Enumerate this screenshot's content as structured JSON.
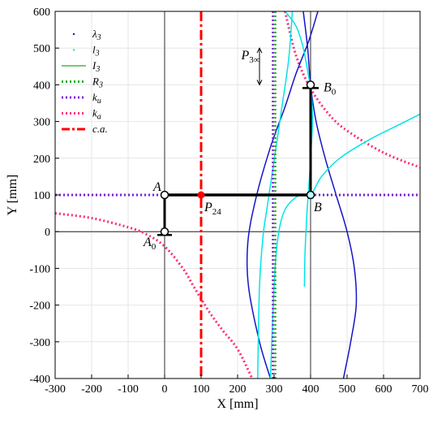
{
  "chart_data": {
    "type": "line",
    "xlabel": "X [mm]",
    "ylabel": "Y [mm]",
    "xlim": [
      -300,
      700
    ],
    "ylim": [
      -400,
      600
    ],
    "grid": true,
    "legend_placement": "top-left",
    "x_ticks": [
      -300,
      -200,
      -100,
      0,
      100,
      200,
      300,
      400,
      500,
      600,
      700
    ],
    "y_ticks": [
      -400,
      -300,
      -200,
      -100,
      0,
      100,
      200,
      300,
      400,
      500,
      600
    ],
    "x_tick_labels": [
      "-300",
      "-200",
      "-100",
      "0",
      "100",
      "200",
      "300",
      "400",
      "500",
      "600",
      "700"
    ],
    "y_tick_labels": [
      "-400",
      "-300",
      "-200",
      "-100",
      "0",
      "100",
      "200",
      "300",
      "400",
      "500",
      "600"
    ],
    "legend": [
      {
        "label": "λ3",
        "color": "#1414c8",
        "style": "dot"
      },
      {
        "label": "l3",
        "color": "#00e5e5",
        "style": "dot"
      },
      {
        "label": "I3",
        "color": "#22aa22",
        "style": "solid"
      },
      {
        "label": "R3",
        "color": "#22aa22",
        "style": "dotted-thick"
      },
      {
        "label": "ku",
        "color": "#7a1fe0",
        "style": "dotted-thick"
      },
      {
        "label": "ka",
        "color": "#ff2a7a",
        "style": "dotted-thick"
      },
      {
        "label": "c.a.",
        "color": "#ff0000",
        "style": "dashdot"
      }
    ],
    "points": [
      {
        "name": "A",
        "x": 0,
        "y": 100
      },
      {
        "name": "A0",
        "x": 0,
        "y": 0
      },
      {
        "name": "B",
        "x": 400,
        "y": 100
      },
      {
        "name": "B0",
        "x": 400,
        "y": 400
      },
      {
        "name": "P24",
        "x": 100,
        "y": 100
      }
    ],
    "annotation": "P3∞",
    "series": [
      {
        "name": "ku",
        "x": [
          -300,
          700
        ],
        "y": [
          100,
          100
        ]
      },
      {
        "name": "c.a.",
        "x": [
          100,
          100
        ],
        "y": [
          -400,
          600
        ]
      },
      {
        "name": "R3",
        "x": [
          300,
          300
        ],
        "y": [
          -400,
          600
        ]
      },
      {
        "name": "ka",
        "x": [
          -300,
          -200,
          -100,
          -50,
          0,
          50,
          80,
          120,
          160,
          200,
          240
        ],
        "y": [
          50,
          37,
          12,
          -7,
          -40,
          -100,
          -150,
          -215,
          -270,
          -320,
          -400
        ]
      },
      {
        "name": "ka",
        "x": [
          330,
          360,
          400,
          450,
          500,
          600,
          700
        ],
        "y": [
          600,
          480,
          390,
          320,
          275,
          215,
          175
        ]
      },
      {
        "name": "λ3",
        "x": [
          228,
          245,
          290,
          330,
          360,
          390,
          420
        ],
        "y": [
          -30,
          60,
          230,
          340,
          430,
          520,
          600
        ]
      },
      {
        "name": "λ3",
        "x": [
          228,
          245,
          290,
          350,
          400,
          460,
          500,
          520,
          510,
          480
        ],
        "y": [
          -30,
          -110,
          -260,
          -400,
          -400,
          -400,
          -400,
          -400,
          -400,
          -400
        ]
      },
      {
        "name": "l3",
        "x": [
          350,
          340,
          320,
          298,
          280,
          270
        ],
        "y": [
          600,
          470,
          330,
          180,
          60,
          -10
        ]
      }
    ]
  },
  "labels": {
    "A": "A",
    "A0_main": "A",
    "A0_sub": "0",
    "B": "B",
    "B0_main": "B",
    "B0_sub": "0",
    "P24_main": "P",
    "P24_sub": "24",
    "P3inf_main": "P",
    "P3inf_sub": "3∞",
    "xlabel": "X [mm]",
    "ylabel": "Y [mm]"
  },
  "legend_labels": {
    "lambda3_main": "λ",
    "lambda3_sub": "3",
    "l3_main": "l",
    "l3_sub": "3",
    "I3_main": "I",
    "I3_sub": "3",
    "R3_main": "R",
    "R3_sub": "3",
    "ku_main": "k",
    "ku_sub": "u",
    "ka_main": "k",
    "ka_sub": "a",
    "ca": "c.a."
  }
}
